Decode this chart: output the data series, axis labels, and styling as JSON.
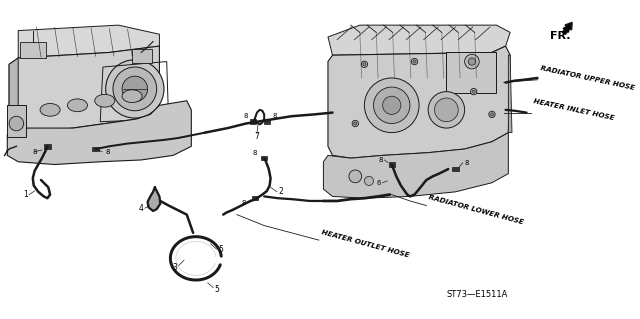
{
  "bg_color": "#f0f0f0",
  "line_color": "#1a1a1a",
  "dark_color": "#111111",
  "mid_color": "#555555",
  "light_color": "#aaaaaa",
  "diagram_code": "ST73—E1511A",
  "fr_label": "FR.",
  "labels": {
    "radiator_upper": "RADIATOR UPPER HOSE",
    "heater_inlet": "HEATER INLET HOSE",
    "radiator_lower": "RADIATOR LOWER HOSE",
    "heater_outlet": "HEATER OUTLET HOSE"
  },
  "figsize": [
    6.4,
    3.19
  ],
  "dpi": 100
}
